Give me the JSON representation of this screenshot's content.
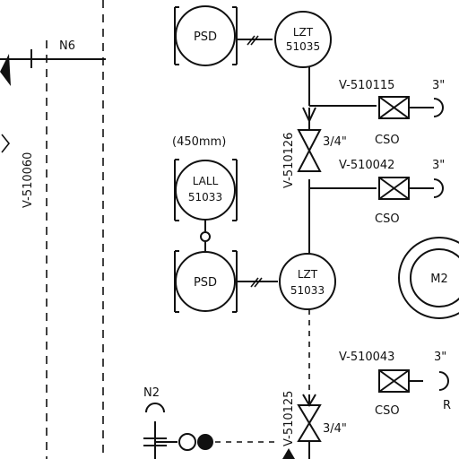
{
  "line_label": "N6",
  "valve_left": "V-510060",
  "top_psd": "PSD",
  "lzt_top": {
    "line1": "LZT",
    "line2": "51035"
  },
  "valve_510126": "V-510126",
  "valve_size_upper": "3/4\"",
  "v510115": {
    "tag": "V-510115",
    "size": "3\"",
    "type": "CSO"
  },
  "v510042": {
    "tag": "V-510042",
    "size": "3\"",
    "type": "CSO"
  },
  "level_note": "(450mm)",
  "lall": {
    "line1": "LALL",
    "line2": "51033"
  },
  "mid_psd": "PSD",
  "lzt_mid": {
    "line1": "LZT",
    "line2": "51033"
  },
  "motor": "M2",
  "v510043": {
    "tag": "V-510043",
    "size": "3\"",
    "type": "CSO",
    "extra": "R"
  },
  "valve_510125": "V-510125",
  "valve_size_lower": "3/4\"",
  "n2": "N2"
}
